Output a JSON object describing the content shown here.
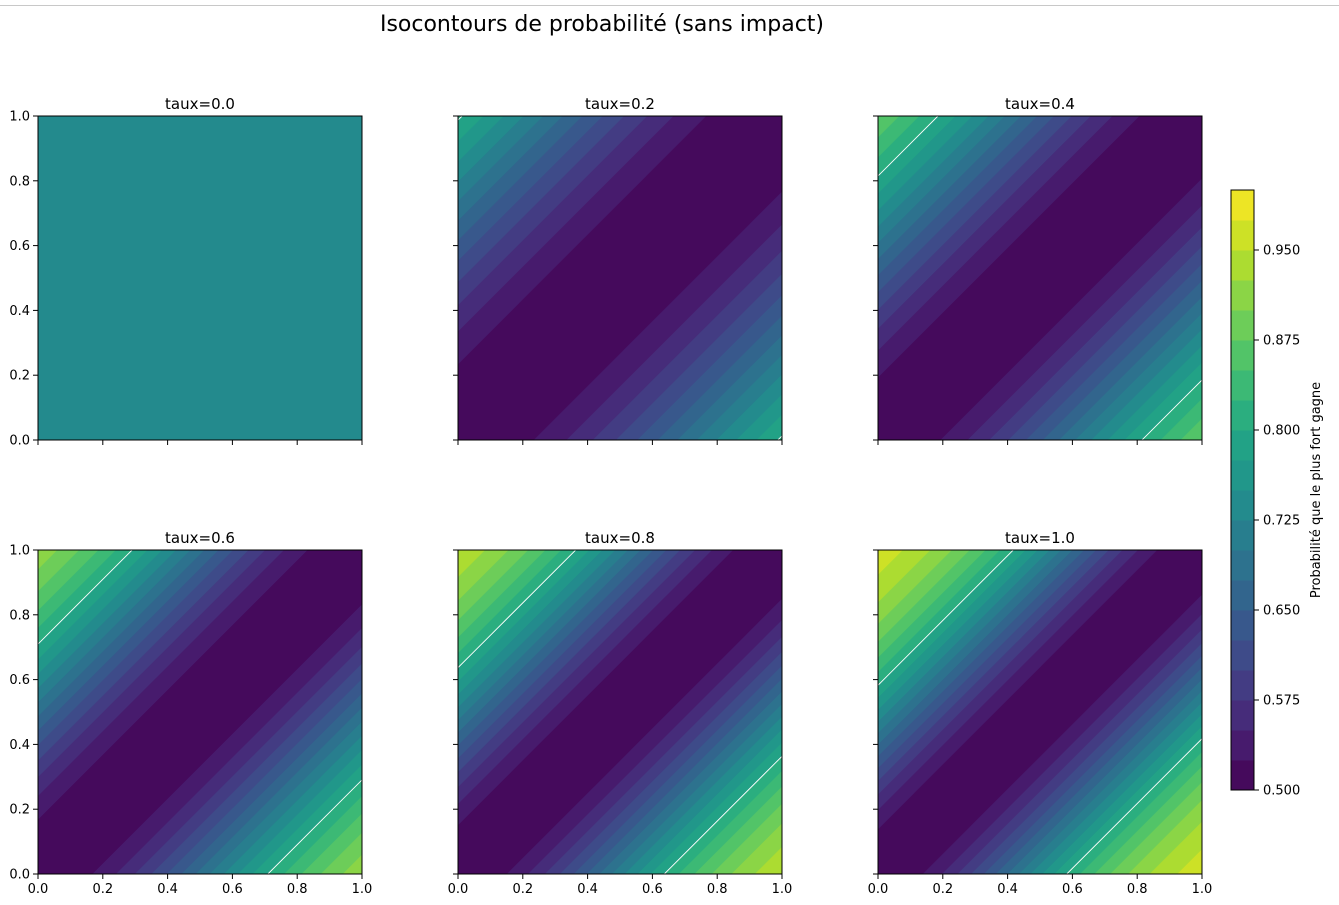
{
  "chart_data": {
    "type": "heatmap",
    "title": "Isocontours de probabilité (sans impact)",
    "panels": [
      {
        "title": "taux=0.0",
        "taux": 0.0
      },
      {
        "title": "taux=0.2",
        "taux": 0.2
      },
      {
        "title": "taux=0.4",
        "taux": 0.4
      },
      {
        "title": "taux=0.6",
        "taux": 0.6
      },
      {
        "title": "taux=0.8",
        "taux": 0.8
      },
      {
        "title": "taux=1.0",
        "taux": 1.0
      }
    ],
    "x_ticks": [
      "0.0",
      "0.2",
      "0.4",
      "0.6",
      "0.8",
      "1.0"
    ],
    "y_ticks": [
      "0.0",
      "0.2",
      "0.4",
      "0.6",
      "0.8",
      "1.0"
    ],
    "xlim": [
      0,
      1
    ],
    "ylim": [
      0,
      1
    ],
    "colorbar": {
      "label": "Probabilité que le plus fort gagne",
      "range": [
        0.5,
        1.0
      ],
      "tick_values": [
        0.5,
        0.575,
        0.65,
        0.725,
        0.8,
        0.875,
        0.95
      ],
      "tick_labels": [
        "0.500",
        "0.575",
        "0.650",
        "0.725",
        "0.800",
        "0.875",
        "0.950"
      ],
      "levels": 20,
      "colormap": "viridis"
    },
    "contour_line_level": 0.8,
    "contour_line_color": "#ffffff",
    "constant_panel_color": "#238a8d"
  }
}
